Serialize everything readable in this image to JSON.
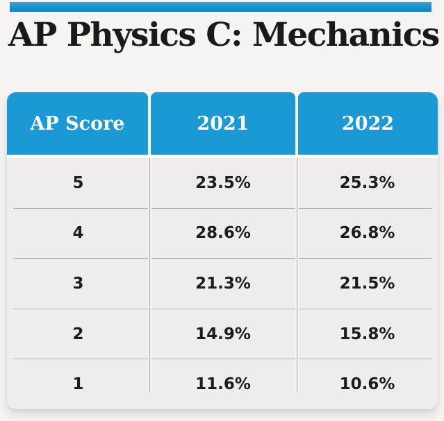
{
  "page": {
    "background": "#f5f4f2",
    "accent_bar_color": "#1e95cd"
  },
  "title": {
    "prefix": "AP",
    "rest": " Physics C: Mechanics"
  },
  "table": {
    "header": {
      "bg": "#1a99d4",
      "text_color": "#ffffff",
      "columns": [
        "AP Score",
        "2021",
        "2022"
      ]
    },
    "body_bg": "#efedeb",
    "divider_color": "#aba9a6",
    "text_color": "#1c1c1c",
    "rows": [
      {
        "score": "5",
        "y2021": "23.5%",
        "y2022": "25.3%"
      },
      {
        "score": "4",
        "y2021": "28.6%",
        "y2022": "26.8%"
      },
      {
        "score": "3",
        "y2021": "21.3%",
        "y2022": "21.5%"
      },
      {
        "score": "2",
        "y2021": "14.9%",
        "y2022": "15.8%"
      },
      {
        "score": "1",
        "y2021": "11.6%",
        "y2022": "10.6%"
      }
    ]
  },
  "chart_data": {
    "type": "table",
    "title": "AP Physics C: Mechanics",
    "columns": [
      "AP Score",
      "2021",
      "2022"
    ],
    "rows": [
      [
        "5",
        "23.5%",
        "25.3%"
      ],
      [
        "4",
        "28.6%",
        "26.8%"
      ],
      [
        "3",
        "21.3%",
        "21.5%"
      ],
      [
        "2",
        "14.9%",
        "15.8%"
      ],
      [
        "1",
        "11.6%",
        "10.6%"
      ]
    ]
  }
}
